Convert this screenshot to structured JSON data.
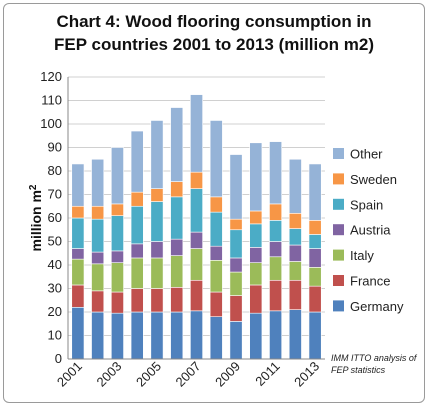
{
  "chart_data": {
    "type": "bar",
    "stacked": true,
    "title_line1": "Chart 4: Wood flooring consumption in",
    "title_line2": "FEP countries 2001 to 2013 (million m2)",
    "ylabel": "million m²",
    "xlabel": "",
    "ylim": [
      0,
      120
    ],
    "yticks": [
      0,
      10,
      20,
      30,
      40,
      50,
      60,
      70,
      80,
      90,
      100,
      110,
      120
    ],
    "grid": true,
    "legend_position": "right",
    "categories": [
      "2001",
      "2002",
      "2003",
      "2004",
      "2005",
      "2006",
      "2007",
      "2008",
      "2009",
      "2010",
      "2011",
      "2012",
      "2013"
    ],
    "x_tick_labels": [
      "2001",
      "2003",
      "2005",
      "2007",
      "2009",
      "2011",
      "2013"
    ],
    "series": [
      {
        "name": "Germany",
        "color": "#4f81bd",
        "values": [
          22,
          20,
          19.5,
          20,
          20,
          20,
          20.5,
          18,
          16,
          19.5,
          20.5,
          21,
          20
        ]
      },
      {
        "name": "France",
        "color": "#c0504d",
        "values": [
          9.5,
          9,
          9,
          10,
          10,
          10.5,
          13,
          10.5,
          11,
          12,
          13,
          12.5,
          11
        ]
      },
      {
        "name": "Italy",
        "color": "#9bbb59",
        "values": [
          11,
          11.5,
          12.5,
          13,
          13,
          13.5,
          13.5,
          13.5,
          10,
          9.5,
          10,
          8,
          8
        ]
      },
      {
        "name": "Austria",
        "color": "#8064a2",
        "values": [
          4.5,
          5,
          5,
          6,
          7,
          7,
          7,
          6,
          6,
          6.5,
          6.5,
          7,
          8
        ]
      },
      {
        "name": "Spain",
        "color": "#4bacc6",
        "values": [
          13,
          14,
          15,
          16,
          17,
          18,
          18.5,
          14.5,
          12,
          10,
          9,
          7,
          6
        ]
      },
      {
        "name": "Sweden",
        "color": "#f79646",
        "values": [
          5,
          5.5,
          5,
          6,
          5.5,
          6.5,
          7,
          6.5,
          4.5,
          5.5,
          7,
          6.5,
          6
        ]
      },
      {
        "name": "Other",
        "color": "#95b3d7",
        "values": [
          18,
          20,
          24,
          26,
          29,
          31.5,
          33,
          32.5,
          27.5,
          29,
          26.5,
          23,
          24
        ]
      }
    ],
    "source_note": "IMM ITTO analysis of FEP statistics"
  }
}
